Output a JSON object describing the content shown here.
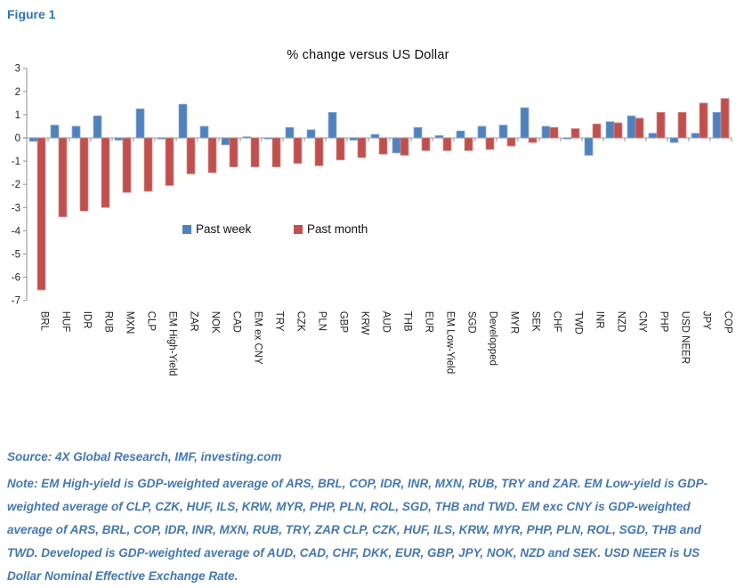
{
  "figure_label": "Figure 1",
  "chart_data": {
    "type": "bar",
    "title": "% change versus US Dollar",
    "categories": [
      "BRL",
      "HUF",
      "IDR",
      "RUB",
      "MXN",
      "CLP",
      "EM High-Yield",
      "ZAR",
      "NOK",
      "CAD",
      "EM ex CNY",
      "TRY",
      "CZK",
      "PLN",
      "GBP",
      "KRW",
      "AUD",
      "THB",
      "EUR",
      "EM Low-Yield",
      "SGD",
      "Developped",
      "MYR",
      "SEK",
      "CHF",
      "TWD",
      "INR",
      "NZD",
      "CNY",
      "PHP",
      "USD NEER",
      "JPY",
      "COP"
    ],
    "series": [
      {
        "name": "Past week",
        "color": "#4F81BD",
        "edge_color": "#8FAFD9",
        "values": [
          -0.15,
          0.55,
          0.5,
          0.95,
          -0.1,
          1.25,
          -0.05,
          1.45,
          0.5,
          -0.3,
          0.05,
          -0.05,
          0.45,
          0.35,
          1.1,
          -0.1,
          0.15,
          -0.65,
          0.45,
          0.1,
          0.3,
          0.5,
          0.55,
          1.3,
          0.5,
          -0.05,
          -0.75,
          0.7,
          0.95,
          0.2,
          -0.2,
          0.2,
          1.1
        ]
      },
      {
        "name": "Past month",
        "color": "#C0504D",
        "edge_color": "#D49290",
        "values": [
          -6.55,
          -3.4,
          -3.15,
          -3.0,
          -2.35,
          -2.3,
          -2.05,
          -1.55,
          -1.5,
          -1.25,
          -1.25,
          -1.25,
          -1.1,
          -1.2,
          -0.95,
          -0.85,
          -0.7,
          -0.75,
          -0.55,
          -0.55,
          -0.55,
          -0.5,
          -0.35,
          -0.2,
          0.45,
          0.4,
          0.6,
          0.65,
          0.85,
          1.1,
          1.1,
          1.5,
          1.7
        ]
      }
    ],
    "ylabel": "",
    "xlabel": "",
    "ylim": [
      -7,
      3
    ],
    "ytick_step": 1,
    "ytick_labels": [
      "3",
      "2",
      "1",
      "0",
      "-1",
      "-2",
      "-3",
      "-4",
      "-5",
      "-6",
      "-7"
    ],
    "grid": false,
    "legend_position": "inside-center-left",
    "axis_color": "#8F8F8F",
    "baseline_color": "#BFBFBF",
    "tick_label_color": "#1f1f1f"
  },
  "source": "Source: 4X Global Research, IMF, investing.com",
  "note": "Note: EM High-yield is GDP-weighted average of ARS, BRL, COP, IDR, INR, MXN, RUB, TRY and ZAR. EM Low-yield is GDP-weighted average of CLP, CZK, HUF, ILS, KRW, MYR, PHP, PLN, ROL, SGD, THB and TWD. EM exc CNY is GDP-weighted average of ARS, BRL, COP, IDR, INR, MXN, RUB, TRY, ZAR CLP, CZK, HUF, ILS, KRW, MYR, PHP, PLN, ROL, SGD, THB and TWD. Developed is GDP-weighted average of AUD, CAD, CHF, DKK, EUR, GBP, JPY, NOK, NZD and SEK. USD NEER is US Dollar Nominal Effective Exchange Rate."
}
